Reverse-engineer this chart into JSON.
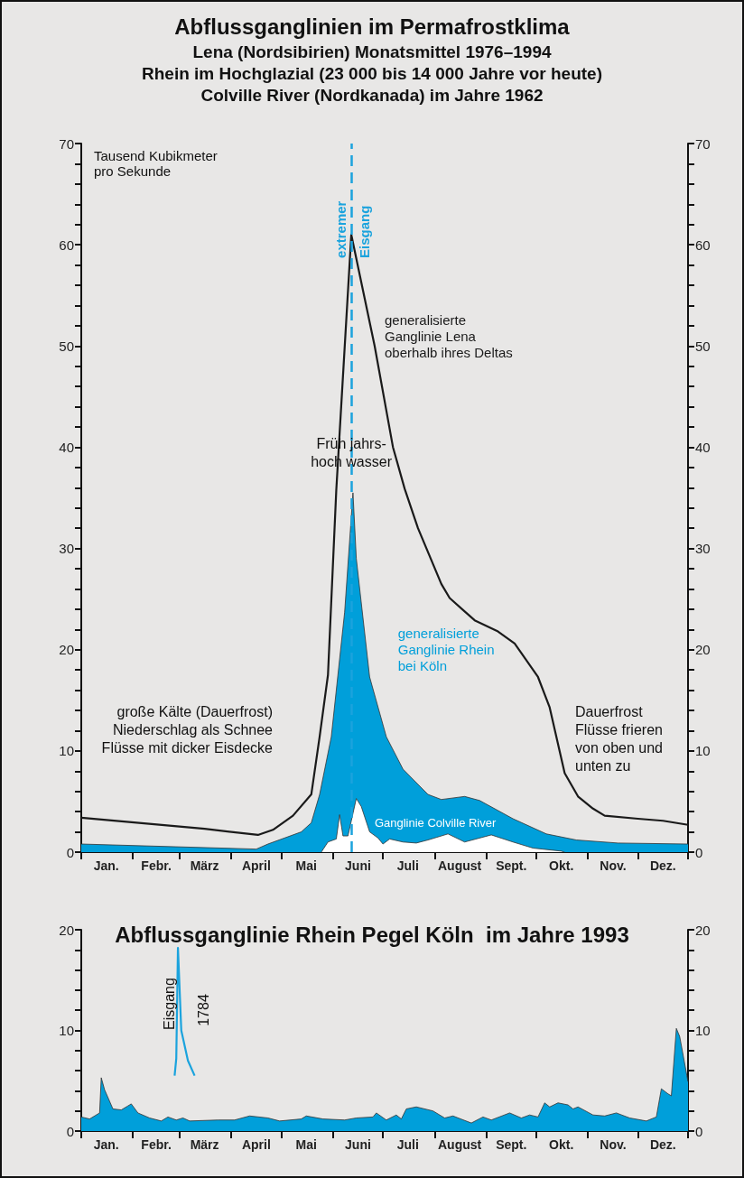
{
  "chart_data": [
    {
      "type": "area",
      "title": "Abflussganglinien im Permafrostklima",
      "subtitle": "Lena (Nordsibirien) Monatsmittel 1976–1994\nRhein im Hochglazial (23 000 bis 14 000 Jahre vor heute)\nColville River (Nordkanada) im Jahre 1962",
      "ylabel": "Tausend Kubikmeter\npro Sekunde",
      "marker": "none",
      "xlim": [
        "--01-01",
        "--12-31"
      ],
      "xticks": [
        {
          "value": "--01-01",
          "label": null
        },
        {
          "value": "--01-16",
          "label": "Jan."
        },
        {
          "value": "--02-01",
          "label": null
        },
        {
          "value": "--02-15",
          "label": "Febr."
        },
        {
          "value": "--03-01",
          "label": null
        },
        {
          "value": "--03-16",
          "label": "März"
        },
        {
          "value": "--04-01",
          "label": null
        },
        {
          "value": "--04-16",
          "label": "April"
        },
        {
          "value": "--05-01",
          "label": null
        },
        {
          "value": "--05-16",
          "label": "Mai"
        },
        {
          "value": "--06-01",
          "label": null
        },
        {
          "value": "--06-16",
          "label": "Juni"
        },
        {
          "value": "--07-01",
          "label": null
        },
        {
          "value": "--07-16",
          "label": "Juli"
        },
        {
          "value": "--08-01",
          "label": null
        },
        {
          "value": "--08-16",
          "label": "August"
        },
        {
          "value": "--09-01",
          "label": null
        },
        {
          "value": "--09-16",
          "label": "Sept."
        },
        {
          "value": "--10-01",
          "label": null
        },
        {
          "value": "--10-16",
          "label": "Okt."
        },
        {
          "value": "--11-01",
          "label": null
        },
        {
          "value": "--11-16",
          "label": "Nov."
        },
        {
          "value": "--12-01",
          "label": null
        },
        {
          "value": "--12-16",
          "label": "Dez."
        },
        {
          "value": "--12-31",
          "label": null
        }
      ],
      "ylim": [
        0,
        70
      ],
      "yticks": [
        0,
        {
          "value": 2,
          "label": null
        },
        {
          "value": 4,
          "label": null
        },
        {
          "value": 6,
          "label": null
        },
        {
          "value": 8,
          "label": null
        },
        10,
        {
          "value": 12,
          "label": null
        },
        {
          "value": 14,
          "label": null
        },
        {
          "value": 16,
          "label": null
        },
        {
          "value": 18,
          "label": null
        },
        20,
        {
          "value": 22,
          "label": null
        },
        {
          "value": 24,
          "label": null
        },
        {
          "value": 26,
          "label": null
        },
        {
          "value": 28,
          "label": null
        },
        30,
        {
          "value": 32,
          "label": null
        },
        {
          "value": 34,
          "label": null
        },
        {
          "value": 36,
          "label": null
        },
        {
          "value": 38,
          "label": null
        },
        40,
        {
          "value": 42,
          "label": null
        },
        {
          "value": 44,
          "label": null
        },
        {
          "value": 46,
          "label": null
        },
        {
          "value": 48,
          "label": null
        },
        50,
        {
          "value": 52,
          "label": null
        },
        {
          "value": 54,
          "label": null
        },
        {
          "value": 56,
          "label": null
        },
        {
          "value": 58,
          "label": null
        },
        60,
        {
          "value": 62,
          "label": null
        },
        {
          "value": 64,
          "label": null
        },
        {
          "value": 66,
          "label": null
        },
        {
          "value": 68,
          "label": null
        },
        70
      ],
      "y2lim": [
        0,
        70
      ],
      "y2ticks": [
        0,
        {
          "value": 2,
          "label": null
        },
        {
          "value": 4,
          "label": null
        },
        {
          "value": 6,
          "label": null
        },
        {
          "value": 8,
          "label": null
        },
        10,
        {
          "value": 12,
          "label": null
        },
        {
          "value": 14,
          "label": null
        },
        {
          "value": 16,
          "label": null
        },
        {
          "value": 18,
          "label": null
        },
        20,
        {
          "value": 22,
          "label": null
        },
        {
          "value": 24,
          "label": null
        },
        {
          "value": 26,
          "label": null
        },
        {
          "value": 28,
          "label": null
        },
        30,
        {
          "value": 32,
          "label": null
        },
        {
          "value": 34,
          "label": null
        },
        {
          "value": 36,
          "label": null
        },
        {
          "value": 38,
          "label": null
        },
        40,
        {
          "value": 42,
          "label": null
        },
        {
          "value": 44,
          "label": null
        },
        {
          "value": 46,
          "label": null
        },
        {
          "value": 48,
          "label": null
        },
        50,
        {
          "value": 52,
          "label": null
        },
        {
          "value": 54,
          "label": null
        },
        {
          "value": 56,
          "label": null
        },
        {
          "value": 58,
          "label": null
        },
        60,
        {
          "value": 62,
          "label": null
        },
        {
          "value": 64,
          "label": null
        },
        {
          "value": 66,
          "label": null
        },
        {
          "value": 68,
          "label": null
        },
        70
      ],
      "series": [
        {
          "name": "generalisierte Ganglinie Rhein bei Köln",
          "type": "area",
          "color": "#009fda",
          "x": [
            "--01-01",
            "--04-16",
            "--04-23",
            "--05-03",
            "--05-13",
            "--05-19",
            "--05-24",
            "--05-31",
            "--06-08",
            "--06-13",
            "--06-15",
            "--06-23",
            "--07-03",
            "--07-13",
            "--07-28",
            "--08-05",
            "--08-19",
            "--08-28",
            "--09-17",
            "--10-07",
            "--10-25",
            "--11-19",
            "--12-31"
          ],
          "values": [
            0.8,
            0.3,
            0.8,
            1.4,
            2,
            2.9,
            5.7,
            11.4,
            23.7,
            35.5,
            29,
            17.3,
            11.4,
            8.2,
            5.7,
            5.2,
            5.5,
            5.1,
            3.3,
            1.8,
            1.2,
            0.9,
            0.8
          ]
        },
        {
          "name": "Ganglinie Colville River",
          "type": "area",
          "color": "#ffffff",
          "x": [
            "--05-25",
            "--05-29",
            "--06-03",
            "--06-05",
            "--06-07",
            "--06-10",
            "--06-15",
            "--06-18",
            "--06-23",
            "--06-28",
            "--07-01",
            "--07-05",
            "--07-13",
            "--07-21",
            "--07-28",
            "--08-09",
            "--08-19",
            "--09-04",
            "--09-17",
            "--09-29",
            "--10-16",
            "--10-18"
          ],
          "values": [
            0,
            1,
            1.3,
            3.7,
            1.6,
            1.6,
            5.3,
            4.5,
            2,
            1.4,
            0.8,
            1.3,
            1,
            0.9,
            1.2,
            1.8,
            1,
            1.7,
            1,
            0.4,
            0.1,
            0
          ]
        },
        {
          "name": "generalisierte Ganglinie Lena oberhalb ihres Deltas",
          "type": "line",
          "color": "#1a1a1a",
          "x": [
            "--01-01",
            "--03-16",
            "--04-17",
            "--04-26",
            "--05-08",
            "--05-19",
            "--05-24",
            "--05-29",
            "--06-03",
            "--06-12",
            "--06-26",
            "--07-07",
            "--07-14",
            "--07-22",
            "--08-05",
            "--08-10",
            "--08-25",
            "--09-08",
            "--09-18",
            "--10-02",
            "--10-09",
            "--10-18",
            "--10-26",
            "--11-04",
            "--11-11",
            "--12-01",
            "--12-16",
            "--12-31"
          ],
          "values": [
            3.4,
            2.3,
            1.7,
            2.2,
            3.6,
            5.7,
            11.4,
            17.5,
            35.8,
            61,
            50,
            40,
            35.9,
            32,
            26.5,
            25.1,
            22.9,
            21.8,
            20.6,
            17.3,
            14.3,
            7.8,
            5.5,
            4.3,
            3.6,
            3.3,
            3.1,
            2.7
          ]
        }
      ],
      "ref_lines": [
        {
          "axis": "x",
          "value": "--06-12",
          "color": "#1ba3dd",
          "line_style": "dashed"
        }
      ],
      "annotations": [
        "große Kälte (Dauerfrost)\nNiederschlag als Schnee\nFlüsse mit dicker Eisdecke",
        "Dauerfrost\nFlüsse frieren\nvon oben und\nunten zu",
        {
          "text": "Früh jahrs-\nhoch wasser",
          "x": "--06-12",
          "y": 40
        },
        {
          "text": "extremer",
          "x": "--06-12",
          "y": 61
        },
        {
          "text": "Eisgang",
          "x": "--06-12",
          "y": 61
        }
      ]
    },
    {
      "type": "area",
      "title": "Abflussganglinie Rhein Pegel Köln  im Jahre 1993",
      "marker": "none",
      "xlim": [
        "--01-01",
        "--12-31"
      ],
      "xticks": [
        {
          "value": "--01-01",
          "label": null
        },
        {
          "value": "--01-16",
          "label": "Jan."
        },
        {
          "value": "--02-01",
          "label": null
        },
        {
          "value": "--02-15",
          "label": "Febr."
        },
        {
          "value": "--03-01",
          "label": null
        },
        {
          "value": "--03-16",
          "label": "März"
        },
        {
          "value": "--04-01",
          "label": null
        },
        {
          "value": "--04-16",
          "label": "April"
        },
        {
          "value": "--05-01",
          "label": null
        },
        {
          "value": "--05-16",
          "label": "Mai"
        },
        {
          "value": "--06-01",
          "label": null
        },
        {
          "value": "--06-16",
          "label": "Juni"
        },
        {
          "value": "--07-01",
          "label": null
        },
        {
          "value": "--07-16",
          "label": "Juli"
        },
        {
          "value": "--08-01",
          "label": null
        },
        {
          "value": "--08-16",
          "label": "August"
        },
        {
          "value": "--09-01",
          "label": null
        },
        {
          "value": "--09-16",
          "label": "Sept."
        },
        {
          "value": "--10-01",
          "label": null
        },
        {
          "value": "--10-16",
          "label": "Okt."
        },
        {
          "value": "--11-01",
          "label": null
        },
        {
          "value": "--11-16",
          "label": "Nov."
        },
        {
          "value": "--12-01",
          "label": null
        },
        {
          "value": "--12-16",
          "label": "Dez."
        },
        {
          "value": "--12-31",
          "label": null
        }
      ],
      "ylim": [
        0,
        20
      ],
      "yticks": [
        0,
        {
          "value": 2,
          "label": null
        },
        {
          "value": 4,
          "label": null
        },
        {
          "value": 6,
          "label": null
        },
        {
          "value": 8,
          "label": null
        },
        10,
        {
          "value": 12,
          "label": null
        },
        {
          "value": 14,
          "label": null
        },
        {
          "value": 16,
          "label": null
        },
        {
          "value": 18,
          "label": null
        },
        20
      ],
      "y2lim": [
        0,
        20
      ],
      "y2ticks": [
        0,
        {
          "value": 2,
          "label": null
        },
        {
          "value": 4,
          "label": null
        },
        {
          "value": 6,
          "label": null
        },
        {
          "value": 8,
          "label": null
        },
        10,
        {
          "value": 12,
          "label": null
        },
        {
          "value": 14,
          "label": null
        },
        {
          "value": 16,
          "label": null
        },
        {
          "value": 18,
          "label": null
        },
        20
      ],
      "series": [
        {
          "type": "area",
          "color": "#009fda",
          "x": [
            "--01-01",
            "--01-06",
            "--01-12",
            "--01-13",
            "--01-15",
            "--01-20",
            "--01-25",
            "--01-29",
            "--01-31",
            "--02-04",
            "--02-11",
            "--02-18",
            "--02-22",
            "--02-27",
            "--03-03",
            "--03-07",
            "--03-24",
            "--04-03",
            "--04-12",
            "--04-23",
            "--04-30",
            "--05-13",
            "--05-16",
            "--05-26",
            "--06-08",
            "--06-15",
            "--06-25",
            "--06-27",
            "--07-03",
            "--07-09",
            "--07-12",
            "--07-15",
            "--07-21",
            "--07-31",
            "--08-07",
            "--08-12",
            "--08-23",
            "--08-30",
            "--09-04",
            "--09-15",
            "--09-22",
            "--09-27",
            "--10-02",
            "--10-06",
            "--10-09",
            "--10-14",
            "--10-20",
            "--10-23",
            "--10-26",
            "--11-04",
            "--11-11",
            "--11-18",
            "--11-26",
            "--12-06",
            "--12-12",
            "--12-15",
            "--12-19",
            "--12-21",
            "--12-24",
            "--12-26",
            "--12-31"
          ],
          "values": [
            1.4,
            1.2,
            1.8,
            5.3,
            4.1,
            2.2,
            2.1,
            2.5,
            2.7,
            1.8,
            1.3,
            1,
            1.4,
            1.1,
            1.3,
            1,
            1.1,
            1.1,
            1.5,
            1.3,
            1,
            1.2,
            1.5,
            1.2,
            1.1,
            1.3,
            1.4,
            1.8,
            1.1,
            1.6,
            1.2,
            2.2,
            2.4,
            2,
            1.3,
            1.5,
            0.8,
            1.4,
            1.1,
            1.8,
            1.3,
            1.6,
            1.4,
            2.8,
            2.4,
            2.8,
            2.6,
            2.2,
            2.4,
            1.6,
            1.5,
            1.8,
            1.3,
            1,
            1.4,
            4.2,
            3.7,
            3.5,
            10.2,
            9.4,
            4.9
          ]
        },
        {
          "type": "line",
          "color": "#1ba3dd",
          "x": [
            "--02-26",
            "--02-27",
            "--02-28",
            "--03-02",
            "--03-06",
            "--03-10"
          ],
          "values": [
            5.5,
            7.2,
            18.2,
            10,
            7,
            5.5
          ]
        }
      ],
      "annotations": [
        "Eisgang",
        "1784"
      ]
    }
  ]
}
